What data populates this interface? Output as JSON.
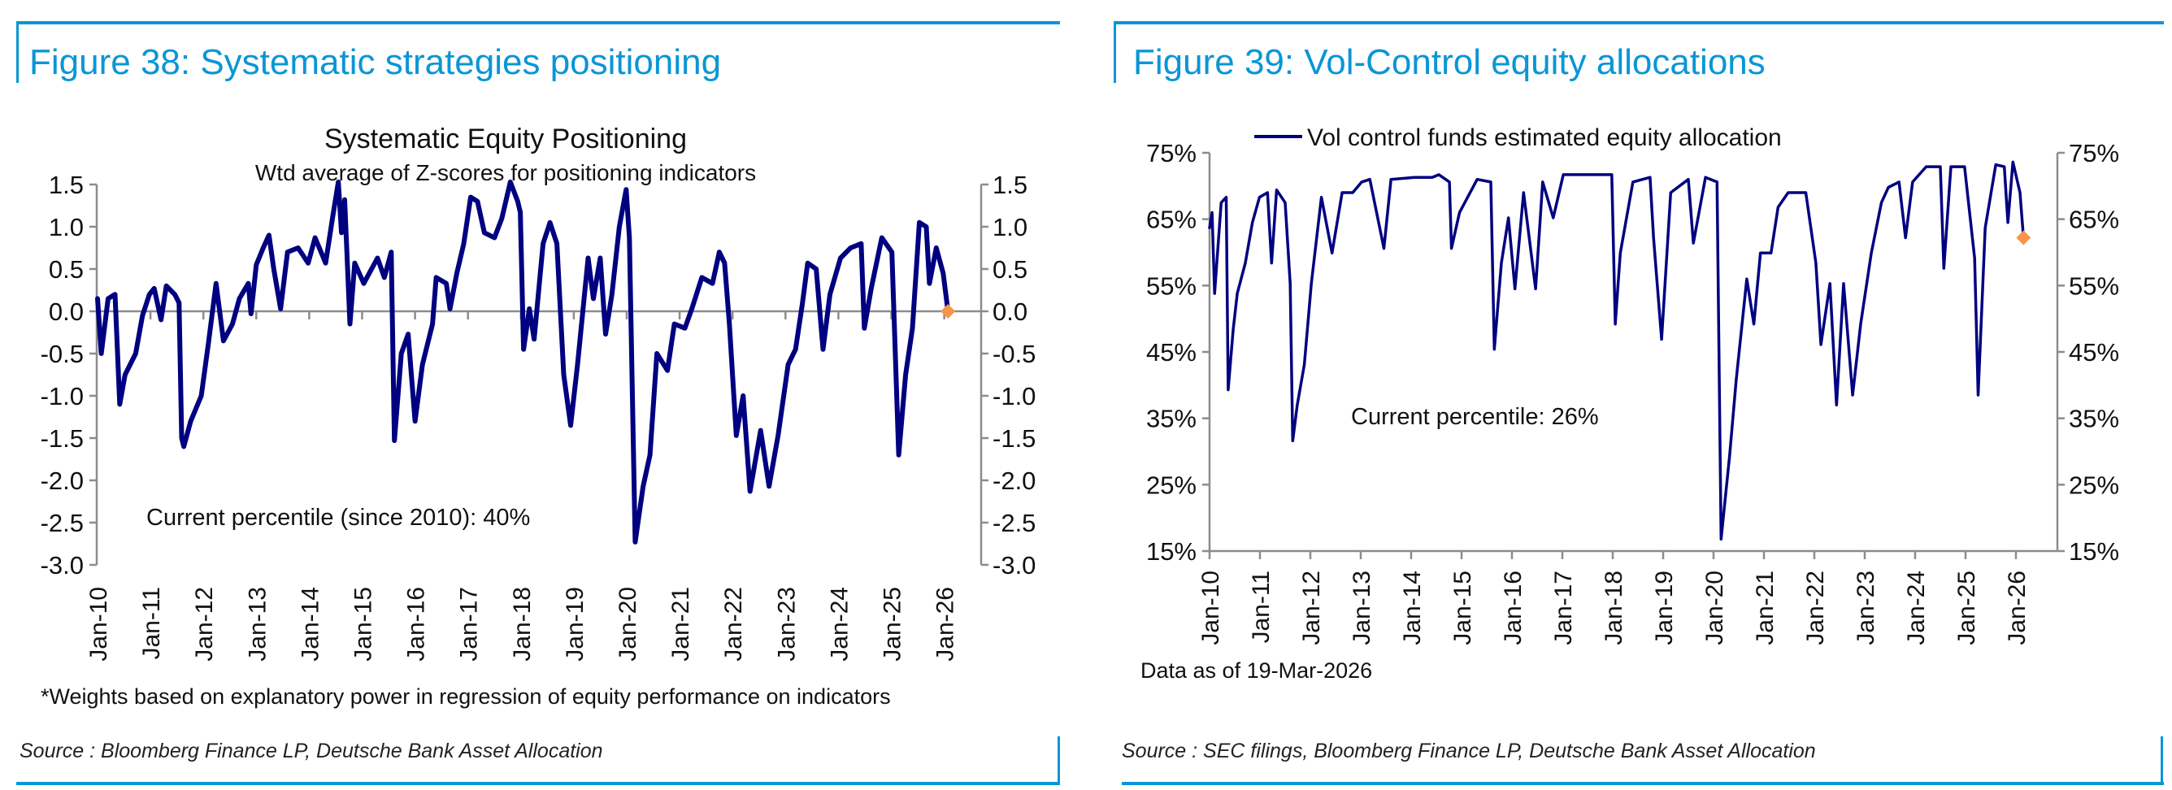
{
  "colors": {
    "accent": "#0a96d6",
    "series": "#000080",
    "current_marker": "#f7954a",
    "axis": "#8c8c8c"
  },
  "panels": [
    {
      "figure_title": "Figure 38: Systematic strategies positioning",
      "footnote": "*Weights based on explanatory power in regression of equity performance on indicators",
      "source": "Source : Bloomberg Finance LP, Deutsche Bank Asset Allocation"
    },
    {
      "figure_title": "Figure 39: Vol-Control equity allocations",
      "footnote": "Data as of 19-Mar-2026",
      "source": "Source : SEC filings, Bloomberg Finance LP, Deutsche Bank Asset Allocation"
    }
  ],
  "chart_data": [
    {
      "type": "line",
      "title": "Systematic Equity Positioning",
      "subtitle": "Wtd average of Z-scores for positioning indicators",
      "annotation": "Current percentile (since 2010): 40%",
      "xlabel": "",
      "ylabel": "",
      "ylim": [
        -3.0,
        1.5
      ],
      "yticks": [
        "1.5",
        "1.0",
        "0.5",
        "0.0",
        "-0.5",
        "-1.0",
        "-1.5",
        "-2.0",
        "-2.5",
        "-3.0"
      ],
      "ytick_values": [
        1.5,
        1.0,
        0.5,
        0.0,
        -0.5,
        -1.0,
        -1.5,
        -2.0,
        -2.5,
        -3.0
      ],
      "xlim": [
        2010,
        2027.1
      ],
      "xticks": [
        "Jan-10",
        "Jan-11",
        "Jan-12",
        "Jan-13",
        "Jan-14",
        "Jan-15",
        "Jan-16",
        "Jan-17",
        "Jan-18",
        "Jan-19",
        "Jan-20",
        "Jan-21",
        "Jan-22",
        "Jan-23",
        "Jan-24",
        "Jan-25",
        "Jan-26"
      ],
      "grid": false,
      "dual_axis": true,
      "series": [
        {
          "name": "Systematic equity positioning z-score",
          "points": [
            [
              2010.0,
              0.15
            ],
            [
              2010.07,
              -0.5
            ],
            [
              2010.2,
              0.15
            ],
            [
              2010.33,
              0.2
            ],
            [
              2010.42,
              -1.1
            ],
            [
              2010.52,
              -0.75
            ],
            [
              2010.72,
              -0.5
            ],
            [
              2010.85,
              -0.05
            ],
            [
              2010.98,
              0.2
            ],
            [
              2011.07,
              0.27
            ],
            [
              2011.2,
              -0.1
            ],
            [
              2011.3,
              0.3
            ],
            [
              2011.46,
              0.2
            ],
            [
              2011.54,
              0.1
            ],
            [
              2011.59,
              -1.5
            ],
            [
              2011.63,
              -1.6
            ],
            [
              2011.76,
              -1.3
            ],
            [
              2011.96,
              -1.0
            ],
            [
              2012.09,
              -0.4
            ],
            [
              2012.24,
              0.33
            ],
            [
              2012.38,
              -0.35
            ],
            [
              2012.55,
              -0.15
            ],
            [
              2012.68,
              0.15
            ],
            [
              2012.85,
              0.33
            ],
            [
              2012.9,
              -0.03
            ],
            [
              2013.0,
              0.55
            ],
            [
              2013.13,
              0.75
            ],
            [
              2013.24,
              0.9
            ],
            [
              2013.33,
              0.5
            ],
            [
              2013.46,
              0.03
            ],
            [
              2013.59,
              0.7
            ],
            [
              2013.79,
              0.75
            ],
            [
              2013.98,
              0.57
            ],
            [
              2014.11,
              0.87
            ],
            [
              2014.31,
              0.57
            ],
            [
              2014.44,
              1.1
            ],
            [
              2014.55,
              1.53
            ],
            [
              2014.61,
              0.93
            ],
            [
              2014.67,
              1.32
            ],
            [
              2014.77,
              -0.15
            ],
            [
              2014.86,
              0.57
            ],
            [
              2015.03,
              0.33
            ],
            [
              2015.29,
              0.63
            ],
            [
              2015.42,
              0.4
            ],
            [
              2015.55,
              0.7
            ],
            [
              2015.61,
              -1.53
            ],
            [
              2015.74,
              -0.5
            ],
            [
              2015.87,
              -0.27
            ],
            [
              2016.0,
              -1.3
            ],
            [
              2016.14,
              -0.63
            ],
            [
              2016.33,
              -0.15
            ],
            [
              2016.4,
              0.4
            ],
            [
              2016.59,
              0.33
            ],
            [
              2016.66,
              0.03
            ],
            [
              2016.79,
              0.45
            ],
            [
              2016.92,
              0.8
            ],
            [
              2017.05,
              1.35
            ],
            [
              2017.18,
              1.3
            ],
            [
              2017.31,
              0.93
            ],
            [
              2017.5,
              0.87
            ],
            [
              2017.64,
              1.1
            ],
            [
              2017.8,
              1.53
            ],
            [
              2017.94,
              1.3
            ],
            [
              2017.99,
              1.17
            ],
            [
              2018.05,
              -0.45
            ],
            [
              2018.16,
              0.03
            ],
            [
              2018.25,
              -0.33
            ],
            [
              2018.42,
              0.8
            ],
            [
              2018.55,
              1.05
            ],
            [
              2018.68,
              0.8
            ],
            [
              2018.81,
              -0.75
            ],
            [
              2018.94,
              -1.35
            ],
            [
              2019.07,
              -0.63
            ],
            [
              2019.27,
              0.63
            ],
            [
              2019.37,
              0.15
            ],
            [
              2019.5,
              0.63
            ],
            [
              2019.6,
              -0.27
            ],
            [
              2019.72,
              0.2
            ],
            [
              2019.86,
              1.0
            ],
            [
              2019.99,
              1.44
            ],
            [
              2020.05,
              0.87
            ],
            [
              2020.16,
              -2.73
            ],
            [
              2020.31,
              -2.07
            ],
            [
              2020.44,
              -1.7
            ],
            [
              2020.57,
              -0.5
            ],
            [
              2020.77,
              -0.7
            ],
            [
              2020.9,
              -0.15
            ],
            [
              2021.1,
              -0.2
            ],
            [
              2021.23,
              0.03
            ],
            [
              2021.42,
              0.4
            ],
            [
              2021.62,
              0.33
            ],
            [
              2021.75,
              0.7
            ],
            [
              2021.85,
              0.57
            ],
            [
              2021.94,
              -0.15
            ],
            [
              2022.07,
              -1.47
            ],
            [
              2022.2,
              -1.0
            ],
            [
              2022.33,
              -2.13
            ],
            [
              2022.53,
              -1.41
            ],
            [
              2022.69,
              -2.07
            ],
            [
              2022.86,
              -1.47
            ],
            [
              2023.05,
              -0.63
            ],
            [
              2023.19,
              -0.45
            ],
            [
              2023.32,
              0.09
            ],
            [
              2023.42,
              0.57
            ],
            [
              2023.58,
              0.5
            ],
            [
              2023.71,
              -0.45
            ],
            [
              2023.84,
              0.2
            ],
            [
              2024.04,
              0.63
            ],
            [
              2024.23,
              0.75
            ],
            [
              2024.43,
              0.8
            ],
            [
              2024.49,
              -0.2
            ],
            [
              2024.62,
              0.27
            ],
            [
              2024.82,
              0.87
            ],
            [
              2025.01,
              0.7
            ],
            [
              2025.14,
              -1.7
            ],
            [
              2025.27,
              -0.75
            ],
            [
              2025.4,
              -0.2
            ],
            [
              2025.53,
              1.05
            ],
            [
              2025.66,
              1.0
            ],
            [
              2025.72,
              0.33
            ],
            [
              2025.85,
              0.75
            ],
            [
              2025.98,
              0.45
            ],
            [
              2026.07,
              0.0
            ]
          ]
        }
      ],
      "current_point": [
        2026.07,
        0.0
      ]
    },
    {
      "type": "line",
      "title": "",
      "legend": [
        {
          "label": "Vol control funds estimated equity allocation"
        }
      ],
      "legend_position": "top-left",
      "annotation": "Current percentile: 26%",
      "xlabel": "",
      "ylabel": "",
      "ylim": [
        15,
        75
      ],
      "yticks": [
        "75%",
        "65%",
        "55%",
        "45%",
        "35%",
        "25%",
        "15%"
      ],
      "ytick_values": [
        75,
        65,
        55,
        45,
        35,
        25,
        15
      ],
      "xlim": [
        2010,
        2026.8
      ],
      "xticks": [
        "Jan-10",
        "Jan-11",
        "Jan-12",
        "Jan-13",
        "Jan-14",
        "Jan-15",
        "Jan-16",
        "Jan-17",
        "Jan-18",
        "Jan-19",
        "Jan-20",
        "Jan-21",
        "Jan-22",
        "Jan-23",
        "Jan-24",
        "Jan-25",
        "Jan-26"
      ],
      "grid": false,
      "dual_axis": true,
      "series": [
        {
          "name": "Vol control funds estimated equity allocation",
          "points": [
            [
              2010.0,
              63.7
            ],
            [
              2010.05,
              66
            ],
            [
              2010.1,
              53.8
            ],
            [
              2010.23,
              67.5
            ],
            [
              2010.33,
              68.3
            ],
            [
              2010.37,
              39.3
            ],
            [
              2010.47,
              48.4
            ],
            [
              2010.55,
              53.8
            ],
            [
              2010.71,
              58.4
            ],
            [
              2010.85,
              64.5
            ],
            [
              2010.99,
              68.3
            ],
            [
              2011.15,
              69
            ],
            [
              2011.23,
              58.4
            ],
            [
              2011.33,
              69.4
            ],
            [
              2011.5,
              67.5
            ],
            [
              2011.6,
              55.3
            ],
            [
              2011.65,
              31.6
            ],
            [
              2011.74,
              37
            ],
            [
              2011.88,
              43.1
            ],
            [
              2012.02,
              55.3
            ],
            [
              2012.22,
              68.3
            ],
            [
              2012.43,
              59.9
            ],
            [
              2012.63,
              69
            ],
            [
              2012.84,
              69
            ],
            [
              2013.02,
              70.6
            ],
            [
              2013.18,
              71
            ],
            [
              2013.46,
              60.6
            ],
            [
              2013.6,
              71
            ],
            [
              2014.07,
              71.3
            ],
            [
              2014.42,
              71.3
            ],
            [
              2014.55,
              71.7
            ],
            [
              2014.76,
              70.6
            ],
            [
              2014.8,
              60.6
            ],
            [
              2014.96,
              66
            ],
            [
              2015.31,
              71
            ],
            [
              2015.58,
              70.6
            ],
            [
              2015.65,
              45.4
            ],
            [
              2015.79,
              58.4
            ],
            [
              2015.93,
              65.2
            ],
            [
              2016.06,
              54.5
            ],
            [
              2016.23,
              69
            ],
            [
              2016.47,
              54.5
            ],
            [
              2016.61,
              70.6
            ],
            [
              2016.82,
              65.2
            ],
            [
              2017.02,
              71.7
            ],
            [
              2017.98,
              71.7
            ],
            [
              2018.05,
              49.2
            ],
            [
              2018.15,
              59.9
            ],
            [
              2018.4,
              70.6
            ],
            [
              2018.74,
              71.3
            ],
            [
              2018.81,
              62.2
            ],
            [
              2018.97,
              46.9
            ],
            [
              2019.15,
              69
            ],
            [
              2019.5,
              71
            ],
            [
              2019.6,
              61.4
            ],
            [
              2019.84,
              71.3
            ],
            [
              2020.07,
              70.6
            ],
            [
              2020.15,
              16.8
            ],
            [
              2020.32,
              29.4
            ],
            [
              2020.45,
              40.8
            ],
            [
              2020.66,
              56
            ],
            [
              2020.8,
              49.2
            ],
            [
              2020.93,
              59.9
            ],
            [
              2021.14,
              59.9
            ],
            [
              2021.28,
              66.8
            ],
            [
              2021.48,
              69
            ],
            [
              2021.83,
              69
            ],
            [
              2022.03,
              58.4
            ],
            [
              2022.13,
              46.1
            ],
            [
              2022.31,
              55.3
            ],
            [
              2022.44,
              37
            ],
            [
              2022.58,
              55.3
            ],
            [
              2022.76,
              38.5
            ],
            [
              2022.92,
              49.2
            ],
            [
              2023.13,
              59.9
            ],
            [
              2023.33,
              67.5
            ],
            [
              2023.47,
              69.8
            ],
            [
              2023.68,
              70.6
            ],
            [
              2023.81,
              62.2
            ],
            [
              2023.95,
              70.6
            ],
            [
              2024.22,
              72.9
            ],
            [
              2024.5,
              72.9
            ],
            [
              2024.57,
              57.6
            ],
            [
              2024.71,
              72.9
            ],
            [
              2024.98,
              72.9
            ],
            [
              2025.18,
              59.1
            ],
            [
              2025.25,
              38.5
            ],
            [
              2025.39,
              63.7
            ],
            [
              2025.6,
              73.2
            ],
            [
              2025.77,
              72.9
            ],
            [
              2025.84,
              64.5
            ],
            [
              2025.94,
              73.6
            ],
            [
              2026.08,
              69
            ],
            [
              2026.15,
              62.2
            ]
          ]
        }
      ],
      "current_point": [
        2026.15,
        62.2
      ]
    }
  ]
}
